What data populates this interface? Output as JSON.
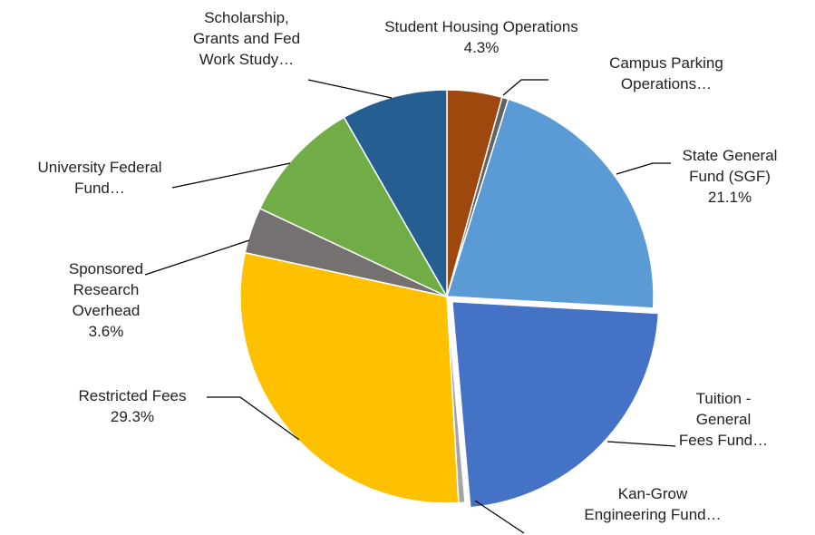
{
  "chart_data": {
    "type": "pie",
    "categories": [
      "Student Housing Operations",
      "Campus Parking Operations…",
      "State General Fund (SGF)",
      "Tuition - General Fees Fund…",
      "Kan-Grow Engineering Fund…",
      "Restricted Fees",
      "Sponsored Research Overhead",
      "University Federal Fund…",
      "Scholarship, Grants and Fed Work Study…"
    ],
    "values": [
      4.3,
      0.5,
      21.1,
      22.7,
      0.5,
      29.3,
      3.6,
      9.7,
      8.3
    ],
    "value_labels": [
      "4.3%",
      null,
      "21.1%",
      null,
      null,
      "29.3%",
      "3.6%",
      null,
      null
    ],
    "colors": [
      "#9e480e",
      "#636363",
      "#5b9bd5",
      "#4472c4",
      "#a5a5a5",
      "#ffc000",
      "#767171",
      "#70ad47",
      "#255e91"
    ],
    "exploded": [
      3
    ]
  }
}
